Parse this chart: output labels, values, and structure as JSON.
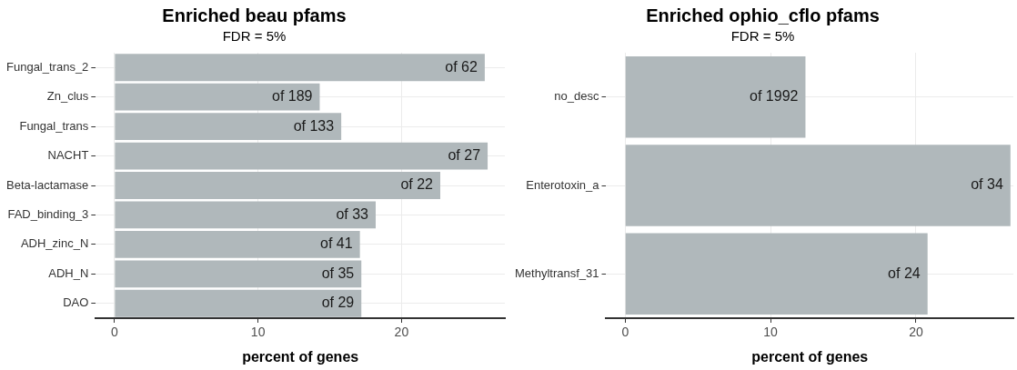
{
  "chart_data": [
    {
      "type": "bar",
      "orientation": "horizontal",
      "title": "Enriched beau pfams",
      "subtitle": "FDR = 5%",
      "xlabel": "percent of genes",
      "categories": [
        "Fungal_trans_2",
        "Zn_clus",
        "Fungal_trans",
        "NACHT",
        "Beta-lactamase",
        "FAD_binding_3",
        "ADH_zinc_N",
        "ADH_N",
        "DAO"
      ],
      "values": [
        25.8,
        14.3,
        15.8,
        26.0,
        22.7,
        18.2,
        17.1,
        17.2,
        17.2
      ],
      "value_labels": [
        "of 62",
        "of 189",
        "of 133",
        "of 27",
        "of 22",
        "of 33",
        "of 41",
        "of 35",
        "of 29"
      ],
      "color": "#b0b8bb",
      "xlim": [
        -1.3,
        27.2
      ],
      "xticks": [
        0,
        10,
        20
      ],
      "grid": true,
      "legend": false
    },
    {
      "type": "bar",
      "orientation": "horizontal",
      "title": "Enriched ophio_cflo pfams",
      "subtitle": "FDR = 5%",
      "xlabel": "percent of genes",
      "categories": [
        "no_desc",
        "Enterotoxin_a",
        "Methyltransf_31"
      ],
      "values": [
        12.4,
        26.5,
        20.8
      ],
      "value_labels": [
        "of 1992",
        "of 34",
        "of 24"
      ],
      "color": "#b0b8bb",
      "xlim": [
        -1.3,
        26.7
      ],
      "xticks": [
        0,
        10,
        20
      ],
      "grid": true,
      "legend": false
    }
  ]
}
